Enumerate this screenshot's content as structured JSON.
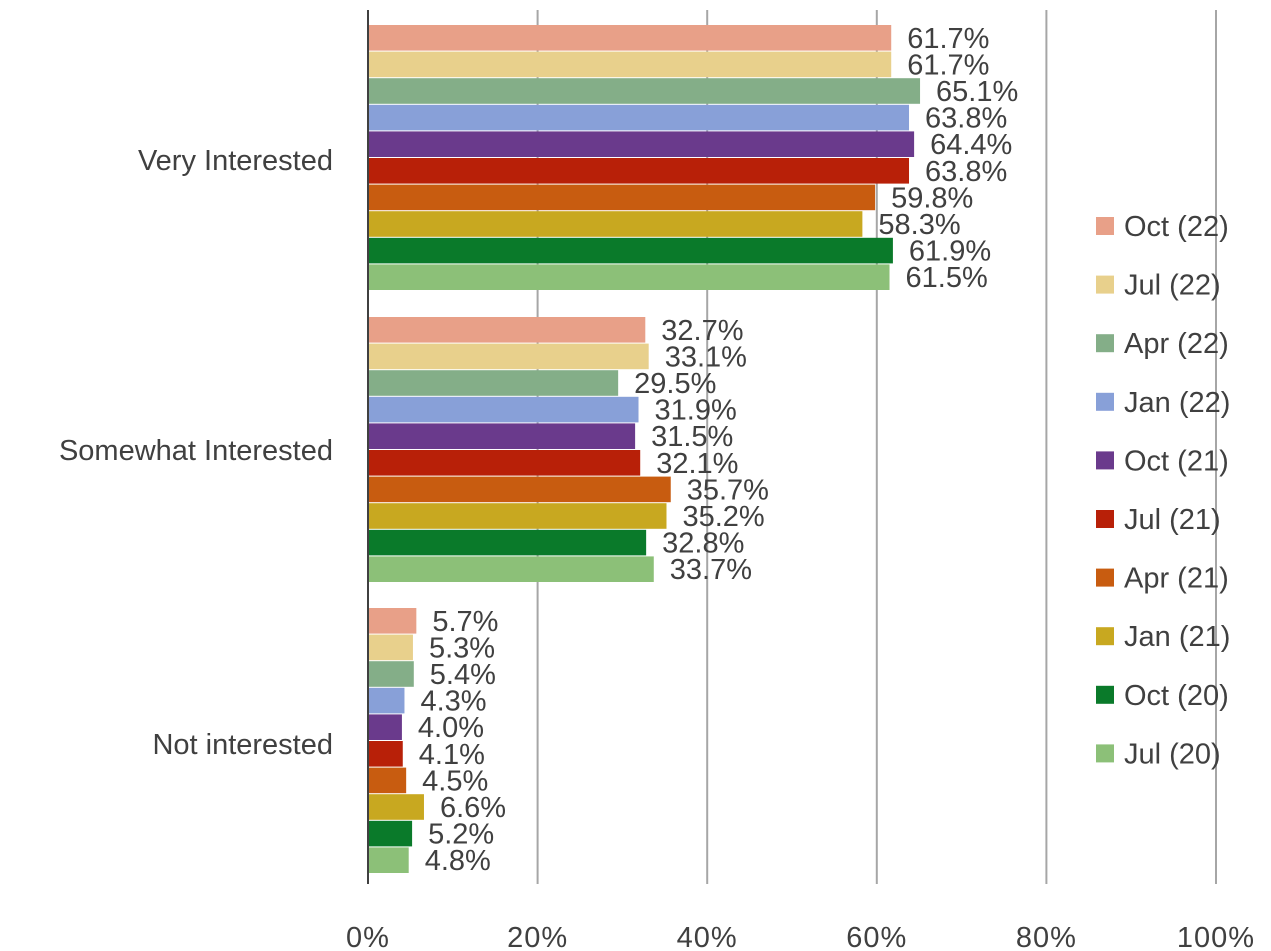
{
  "chart_data": {
    "type": "bar",
    "orientation": "horizontal",
    "categories": [
      "Very Interested",
      "Somewhat Interested",
      "Not interested"
    ],
    "series": [
      {
        "name": "Oct (22)",
        "color": "#E8A088",
        "values": [
          61.7,
          32.7,
          5.7
        ],
        "labels": [
          "61.7%",
          "32.7%",
          "5.7%"
        ]
      },
      {
        "name": "Jul (22)",
        "color": "#E8D08C",
        "values": [
          61.7,
          33.1,
          5.3
        ],
        "labels": [
          "61.7%",
          "33.1%",
          "5.3%"
        ]
      },
      {
        "name": "Apr (22)",
        "color": "#84AE88",
        "values": [
          65.1,
          29.5,
          5.4
        ],
        "labels": [
          "65.1%",
          "29.5%",
          "5.4%"
        ]
      },
      {
        "name": "Jan (22)",
        "color": "#88A0D8",
        "values": [
          63.8,
          31.9,
          4.3
        ],
        "labels": [
          "63.8%",
          "31.9%",
          "4.3%"
        ]
      },
      {
        "name": "Oct (21)",
        "color": "#6A3A8C",
        "values": [
          64.4,
          31.5,
          4.0
        ],
        "labels": [
          "64.4%",
          "31.5%",
          "4.0%"
        ]
      },
      {
        "name": "Jul (21)",
        "color": "#B82008",
        "values": [
          63.8,
          32.1,
          4.1
        ],
        "labels": [
          "63.8%",
          "32.1%",
          "4.1%"
        ]
      },
      {
        "name": "Apr (21)",
        "color": "#C85C10",
        "values": [
          59.8,
          35.7,
          4.5
        ],
        "labels": [
          "59.8%",
          "35.7%",
          "4.5%"
        ]
      },
      {
        "name": "Jan (21)",
        "color": "#C8A820",
        "values": [
          58.3,
          35.2,
          6.6
        ],
        "labels": [
          "58.3%",
          "35.2%",
          "6.6%"
        ]
      },
      {
        "name": "Oct (20)",
        "color": "#0A7A2A",
        "values": [
          61.9,
          32.8,
          5.2
        ],
        "labels": [
          "61.9%",
          "32.8%",
          "5.2%"
        ]
      },
      {
        "name": "Jul (20)",
        "color": "#8CC078",
        "values": [
          61.5,
          33.7,
          4.8
        ],
        "labels": [
          "61.5%",
          "33.7%",
          "4.8%"
        ]
      }
    ],
    "xlim": [
      0,
      100
    ],
    "x_ticks": [
      0,
      20,
      40,
      60,
      80,
      100
    ],
    "x_tick_labels": [
      "0%",
      "20%",
      "40%",
      "60%",
      "80%",
      "100%"
    ],
    "grid": true,
    "legend_position": "right"
  }
}
